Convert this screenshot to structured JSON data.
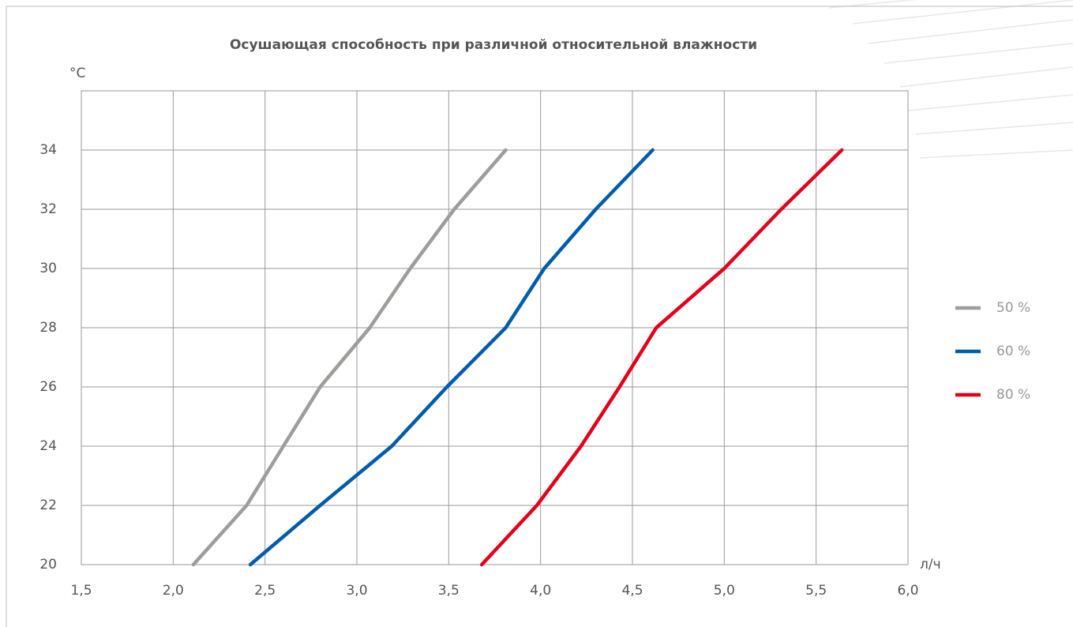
{
  "chart_data": {
    "type": "line",
    "title": "Осушающая способность при различной относительной влажности",
    "y_label": "°C",
    "x_label": "л/ч",
    "xlim": [
      1.5,
      6.0
    ],
    "xticks": [
      {
        "value": 1.5,
        "label": "1,5"
      },
      {
        "value": 2.0,
        "label": "2,0"
      },
      {
        "value": 2.5,
        "label": "2,5"
      },
      {
        "value": 3.0,
        "label": "3,0"
      },
      {
        "value": 3.5,
        "label": "3,5"
      },
      {
        "value": 4.0,
        "label": "4,0"
      },
      {
        "value": 4.5,
        "label": "4,5"
      },
      {
        "value": 5.0,
        "label": "5,0"
      },
      {
        "value": 5.5,
        "label": "5,5"
      },
      {
        "value": 6.0,
        "label": "6,0"
      }
    ],
    "ylim": [
      20,
      36
    ],
    "yticks": [
      20,
      22,
      24,
      26,
      28,
      30,
      32,
      34
    ],
    "grid": true,
    "legend": "right",
    "series": [
      {
        "name": "50 %",
        "color": "#9d9d9c",
        "x": [
          2.11,
          2.4,
          2.6,
          2.8,
          3.07,
          3.29,
          3.53,
          3.81
        ],
        "values": [
          20,
          22,
          24,
          26,
          28,
          30,
          32,
          34
        ]
      },
      {
        "name": "60 %",
        "color": "#005ca9",
        "x": [
          2.42,
          2.8,
          3.19,
          3.49,
          3.81,
          4.02,
          4.3,
          4.61
        ],
        "values": [
          20,
          22,
          24,
          26,
          28,
          30,
          32,
          34
        ]
      },
      {
        "name": "80 %",
        "color": "#e2001a",
        "x": [
          3.68,
          3.98,
          4.22,
          4.43,
          4.63,
          5.0,
          5.31,
          5.64
        ],
        "values": [
          20,
          22,
          24,
          26,
          28,
          30,
          32,
          34
        ]
      }
    ]
  }
}
